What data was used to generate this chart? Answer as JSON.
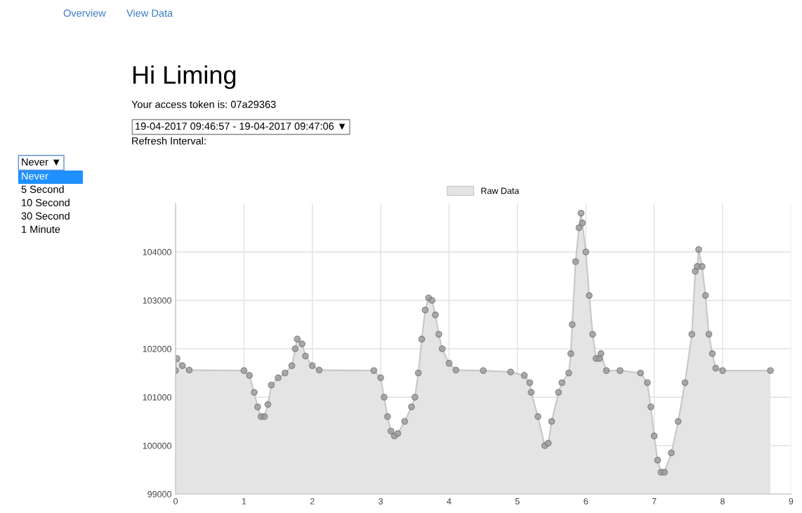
{
  "chart_data": {
    "type": "area",
    "title": "Hi Liming",
    "subtitle": "Your access token is: 07a29363",
    "annotations": [
      "Overview",
      "View Data",
      "19-04-2017 09:46:57 - 19-04-2017 09:47:06 ▼",
      "Refresh Interval:",
      "Never ▼",
      "Never",
      "5 Second",
      "10 Second",
      "30 Second",
      "1 Minute"
    ],
    "series": [
      {
        "name": "Raw Data",
        "color": "#e4e4e4",
        "x": [
          0,
          0.02,
          0.1,
          0.2,
          1.0,
          1.08,
          1.15,
          1.2,
          1.25,
          1.3,
          1.35,
          1.4,
          1.5,
          1.6,
          1.7,
          1.75,
          1.78,
          1.85,
          1.9,
          2.0,
          2.1,
          2.9,
          3.0,
          3.05,
          3.1,
          3.15,
          3.2,
          3.25,
          3.35,
          3.45,
          3.5,
          3.55,
          3.6,
          3.65,
          3.7,
          3.75,
          3.8,
          3.85,
          3.9,
          4.0,
          4.1,
          4.5,
          4.9,
          5.1,
          5.18,
          5.2,
          5.3,
          5.4,
          5.45,
          5.5,
          5.6,
          5.65,
          5.75,
          5.78,
          5.8,
          5.85,
          5.9,
          5.93,
          5.95,
          6.0,
          6.05,
          6.1,
          6.15,
          6.2,
          6.22,
          6.3,
          6.5,
          6.8,
          6.9,
          6.95,
          7.0,
          7.05,
          7.1,
          7.15,
          7.25,
          7.35,
          7.45,
          7.55,
          7.6,
          7.63,
          7.65,
          7.7,
          7.75,
          7.8,
          7.85,
          7.9,
          8.0,
          8.7
        ],
        "values": [
          101550,
          101800,
          101650,
          101560,
          101550,
          101450,
          101100,
          100800,
          100600,
          100600,
          100850,
          101250,
          101400,
          101500,
          101650,
          102000,
          102200,
          102100,
          101850,
          101650,
          101560,
          101550,
          101400,
          101000,
          100600,
          100300,
          100200,
          100250,
          100500,
          100800,
          101000,
          101500,
          102200,
          102800,
          103050,
          103000,
          102700,
          102300,
          102000,
          101700,
          101560,
          101550,
          101520,
          101450,
          101300,
          101100,
          100600,
          100000,
          100050,
          100500,
          101100,
          101300,
          101500,
          101900,
          102500,
          103800,
          104500,
          104800,
          104600,
          104000,
          103100,
          102300,
          101800,
          101800,
          101900,
          101550,
          101550,
          101500,
          101300,
          100800,
          100200,
          99700,
          99450,
          99450,
          99850,
          100500,
          101300,
          102300,
          103600,
          103700,
          104050,
          103700,
          103100,
          102300,
          101900,
          101600,
          101550,
          101550
        ]
      }
    ],
    "xlim": [
      0,
      9
    ],
    "xticks": [
      0,
      1,
      2,
      3,
      4,
      5,
      6,
      7,
      8,
      9
    ],
    "ylim": [
      99000,
      105000
    ],
    "yticks": [
      99000,
      100000,
      101000,
      102000,
      103000,
      104000
    ],
    "grid": true,
    "legend": "top",
    "marker": "circle"
  }
}
